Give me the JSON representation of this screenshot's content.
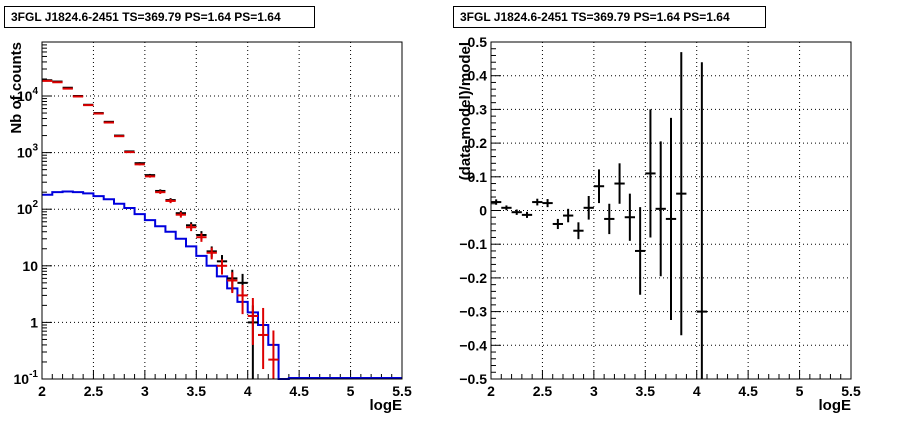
{
  "chart_data": [
    {
      "type": "histogram",
      "title": "3FGL J1824.6-2451 TS=369.79 PS=1.64 PS=1.64",
      "xlabel": "logE",
      "ylabel": "Nb of counts",
      "xlim": [
        2,
        5.5
      ],
      "ylim": [
        0.1,
        90000
      ],
      "yscale": "log",
      "grid": true,
      "xticks": [
        "2",
        "2.5",
        "3",
        "3.5",
        "4",
        "4.5",
        "5",
        "5.5"
      ],
      "yticks": [
        {
          "value": 0.1,
          "label": "10",
          "sup": "-1"
        },
        {
          "value": 1,
          "label": "1",
          "sup": ""
        },
        {
          "value": 10,
          "label": "10",
          "sup": ""
        },
        {
          "value": 100,
          "label": "10",
          "sup": "2"
        },
        {
          "value": 1000,
          "label": "10",
          "sup": "3"
        },
        {
          "value": 10000,
          "label": "10",
          "sup": "4"
        }
      ],
      "bin_width": 0.1,
      "series": [
        {
          "style": "histogram",
          "color": "#0000dd",
          "x": [
            2.0,
            2.1,
            2.2,
            2.3,
            2.4,
            2.5,
            2.6,
            2.7,
            2.8,
            2.9,
            3.0,
            3.1,
            3.2,
            3.3,
            3.4,
            3.5,
            3.6,
            3.7,
            3.8,
            3.9,
            4.0,
            4.1,
            4.2,
            4.3
          ],
          "values": [
            180,
            200,
            205,
            200,
            190,
            170,
            150,
            125,
            105,
            82,
            64,
            50,
            40,
            30,
            22,
            15,
            10,
            6.5,
            4,
            2.3,
            1.5,
            0.9,
            0.4,
            0.1
          ]
        },
        {
          "style": "points",
          "color": "#000000",
          "x": [
            2.05,
            2.15,
            2.25,
            2.35,
            2.45,
            2.55,
            2.65,
            2.75,
            2.85,
            2.95,
            3.05,
            3.15,
            3.25,
            3.35,
            3.45,
            3.55,
            3.65,
            3.75,
            3.85,
            3.95,
            4.05
          ],
          "values": [
            19000,
            18000,
            14000,
            10000,
            7000,
            5000,
            3500,
            2000,
            1050,
            650,
            400,
            210,
            145,
            85,
            52,
            35,
            18,
            12,
            6,
            5,
            1
          ],
          "err_lo": [
            138,
            134,
            118,
            100,
            84,
            71,
            59,
            45,
            32,
            25,
            20,
            14,
            12,
            9,
            7,
            6,
            4,
            3.5,
            2.5,
            2.2,
            1
          ],
          "err_hi": [
            138,
            134,
            118,
            100,
            84,
            71,
            59,
            45,
            32,
            25,
            20,
            14,
            12,
            9,
            7,
            6,
            4,
            3.5,
            2.5,
            2.2,
            1
          ]
        },
        {
          "style": "points",
          "color": "#dd0000",
          "x": [
            2.05,
            2.15,
            2.25,
            2.35,
            2.45,
            2.55,
            2.65,
            2.75,
            2.85,
            2.95,
            3.05,
            3.15,
            3.25,
            3.35,
            3.45,
            3.55,
            3.65,
            3.75,
            3.85,
            3.95,
            4.05,
            4.15,
            4.25
          ],
          "values": [
            18500,
            17500,
            13500,
            9800,
            6900,
            4900,
            3400,
            1950,
            1020,
            620,
            380,
            200,
            140,
            80,
            48,
            32,
            17,
            10,
            5.5,
            3,
            1.3,
            0.6,
            0.22
          ],
          "err_lo": [
            136,
            132,
            116,
            99,
            83,
            70,
            58,
            44,
            32,
            25,
            19,
            14,
            12,
            9,
            7,
            5.5,
            4,
            3,
            2.2,
            1.6,
            0.9,
            0.45,
            0.13
          ],
          "err_hi": [
            136,
            132,
            116,
            99,
            83,
            70,
            58,
            44,
            32,
            25,
            19,
            14,
            12,
            9,
            7,
            5.5,
            4,
            3,
            2.2,
            1.6,
            1.4,
            1.2,
            0.5
          ]
        }
      ]
    },
    {
      "type": "scatter",
      "title": "3FGL J1824.6-2451 TS=369.79 PS=1.64 PS=1.64",
      "xlabel": "logE",
      "ylabel": "(data-model)/model",
      "xlim": [
        2,
        5.5
      ],
      "ylim": [
        -0.5,
        0.5
      ],
      "grid": true,
      "xticks": [
        "2",
        "2.5",
        "3",
        "3.5",
        "4",
        "4.5",
        "5",
        "5.5"
      ],
      "yticks": [
        "−0.5",
        "−0.4",
        "−0.3",
        "−0.2",
        "−0.1",
        "0",
        "0.1",
        "0.2",
        "0.3",
        "0.4",
        "0.5"
      ],
      "bin_width": 0.1,
      "series": [
        {
          "style": "points",
          "color": "#000000",
          "x": [
            2.05,
            2.15,
            2.25,
            2.35,
            2.45,
            2.55,
            2.65,
            2.75,
            2.85,
            2.95,
            3.05,
            3.15,
            3.25,
            3.35,
            3.45,
            3.55,
            3.65,
            3.75,
            3.85,
            4.05
          ],
          "values": [
            0.025,
            0.008,
            -0.005,
            -0.013,
            0.025,
            0.022,
            -0.04,
            -0.015,
            -0.06,
            0.008,
            0.072,
            -0.025,
            0.08,
            -0.02,
            -0.12,
            0.11,
            0.005,
            -0.025,
            0.05,
            -0.3
          ],
          "err": [
            0.008,
            0.007,
            0.008,
            0.009,
            0.01,
            0.012,
            0.015,
            0.02,
            0.025,
            0.035,
            0.05,
            0.045,
            0.06,
            0.07,
            0.13,
            0.19,
            0.2,
            0.3,
            0.42,
            0.74
          ]
        }
      ]
    }
  ]
}
